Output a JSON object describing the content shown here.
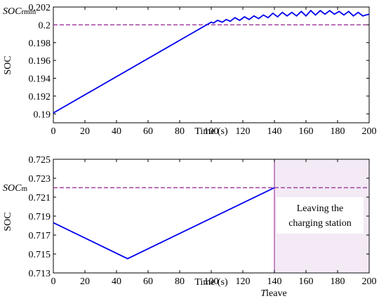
{
  "chart_data": [
    {
      "type": "line",
      "xlabel": "Time (s)",
      "ylabel": "SOC",
      "xlim": [
        0,
        200
      ],
      "ylim": [
        0.189,
        0.202
      ],
      "xticks": [
        0,
        20,
        40,
        60,
        80,
        100,
        120,
        140,
        160,
        180,
        200
      ],
      "yticks": [
        0.19,
        0.192,
        0.194,
        0.196,
        0.198,
        0.2,
        0.202
      ],
      "ytick_labels": [
        "0.19",
        "0.192",
        "0.194",
        "0.196",
        "0.198",
        "0.2",
        "0.202"
      ],
      "reference_line": {
        "label_main": "SOC",
        "label_sub": "rmin",
        "value": 0.2,
        "color": "#a040a0",
        "style": "dashed"
      },
      "series": [
        {
          "color": "#0000ee",
          "x": [
            0,
            100,
            101.5,
            104,
            107,
            109.5,
            112,
            115,
            118,
            121,
            124,
            127,
            130,
            133,
            136,
            139,
            142,
            145,
            148,
            151,
            154,
            157,
            160,
            163,
            166,
            169,
            172,
            175,
            178,
            181,
            184,
            187,
            190,
            193,
            196,
            198,
            200
          ],
          "y": [
            0.1901,
            0.2003,
            0.2002,
            0.2005,
            0.2003,
            0.2006,
            0.2004,
            0.2008,
            0.2005,
            0.2009,
            0.2006,
            0.201,
            0.2007,
            0.2011,
            0.2008,
            0.2013,
            0.2009,
            0.2014,
            0.201,
            0.2014,
            0.201,
            0.2015,
            0.201,
            0.2016,
            0.2011,
            0.2016,
            0.2012,
            0.2016,
            0.2012,
            0.2015,
            0.2011,
            0.2015,
            0.201,
            0.2014,
            0.201,
            0.2011,
            0.2012
          ]
        }
      ]
    },
    {
      "type": "line",
      "xlabel": "Time (s)",
      "ylabel": "SOC",
      "xlim": [
        0,
        200
      ],
      "ylim": [
        0.713,
        0.725
      ],
      "xticks": [
        0,
        20,
        40,
        60,
        80,
        100,
        120,
        140,
        160,
        180,
        200
      ],
      "yticks": [
        0.713,
        0.715,
        0.717,
        0.719,
        0.721,
        0.723,
        0.725
      ],
      "ytick_labels": [
        "0.713",
        "0.715",
        "0.717",
        "0.719",
        "0.721",
        "0.723",
        "0.725"
      ],
      "reference_line": {
        "label_main": "SOC",
        "label_sub": "m",
        "value": 0.722,
        "color": "#a040a0",
        "style": "dashed"
      },
      "vertical_marker": {
        "x": 140,
        "label_main": "T",
        "label_sub": "leave",
        "color": "#a040a0"
      },
      "shaded_region": {
        "x": [
          140,
          200
        ],
        "color": "#b070c0"
      },
      "annotation": {
        "line1": "Leaving the",
        "line2": "charging station"
      },
      "series": [
        {
          "color": "#0000ee",
          "x": [
            0,
            47,
            140
          ],
          "y": [
            0.7183,
            0.7145,
            0.722
          ]
        }
      ]
    }
  ]
}
